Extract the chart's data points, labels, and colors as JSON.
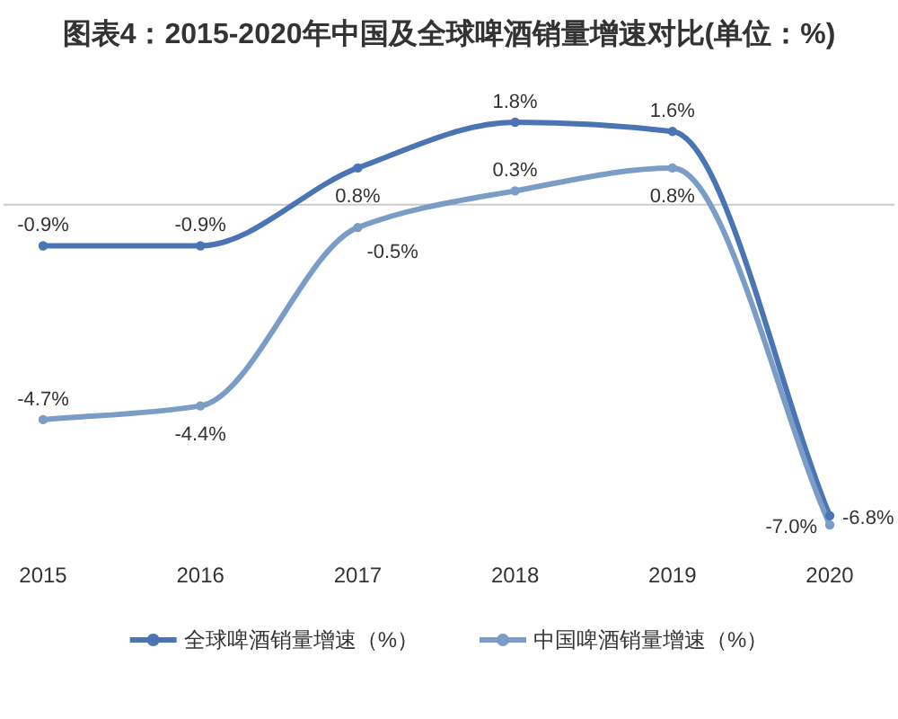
{
  "chart_data": {
    "type": "line",
    "title": "图表4：2015-2020年中国及全球啤酒销量增速对比(单位：%)",
    "categories": [
      "2015",
      "2016",
      "2017",
      "2018",
      "2019",
      "2020"
    ],
    "series": [
      {
        "name": "全球啤酒销量增速（%）",
        "color": "#4a74b4",
        "values": [
          -0.9,
          -0.9,
          0.8,
          1.8,
          1.6,
          -6.8
        ],
        "value_labels": [
          "-0.9%",
          "-0.9%",
          "0.8%",
          "1.8%",
          "1.6%",
          "-6.8%"
        ]
      },
      {
        "name": "中国啤酒销量增速（%）",
        "color": "#7b9cc6",
        "values": [
          -4.7,
          -4.4,
          -0.5,
          0.3,
          0.8,
          -7.0
        ],
        "value_labels": [
          "-4.7%",
          "-4.4%",
          "-0.5%",
          "0.3%",
          "0.8%",
          "-7.0%"
        ]
      }
    ],
    "marker": "circle",
    "legend": "bottom"
  }
}
